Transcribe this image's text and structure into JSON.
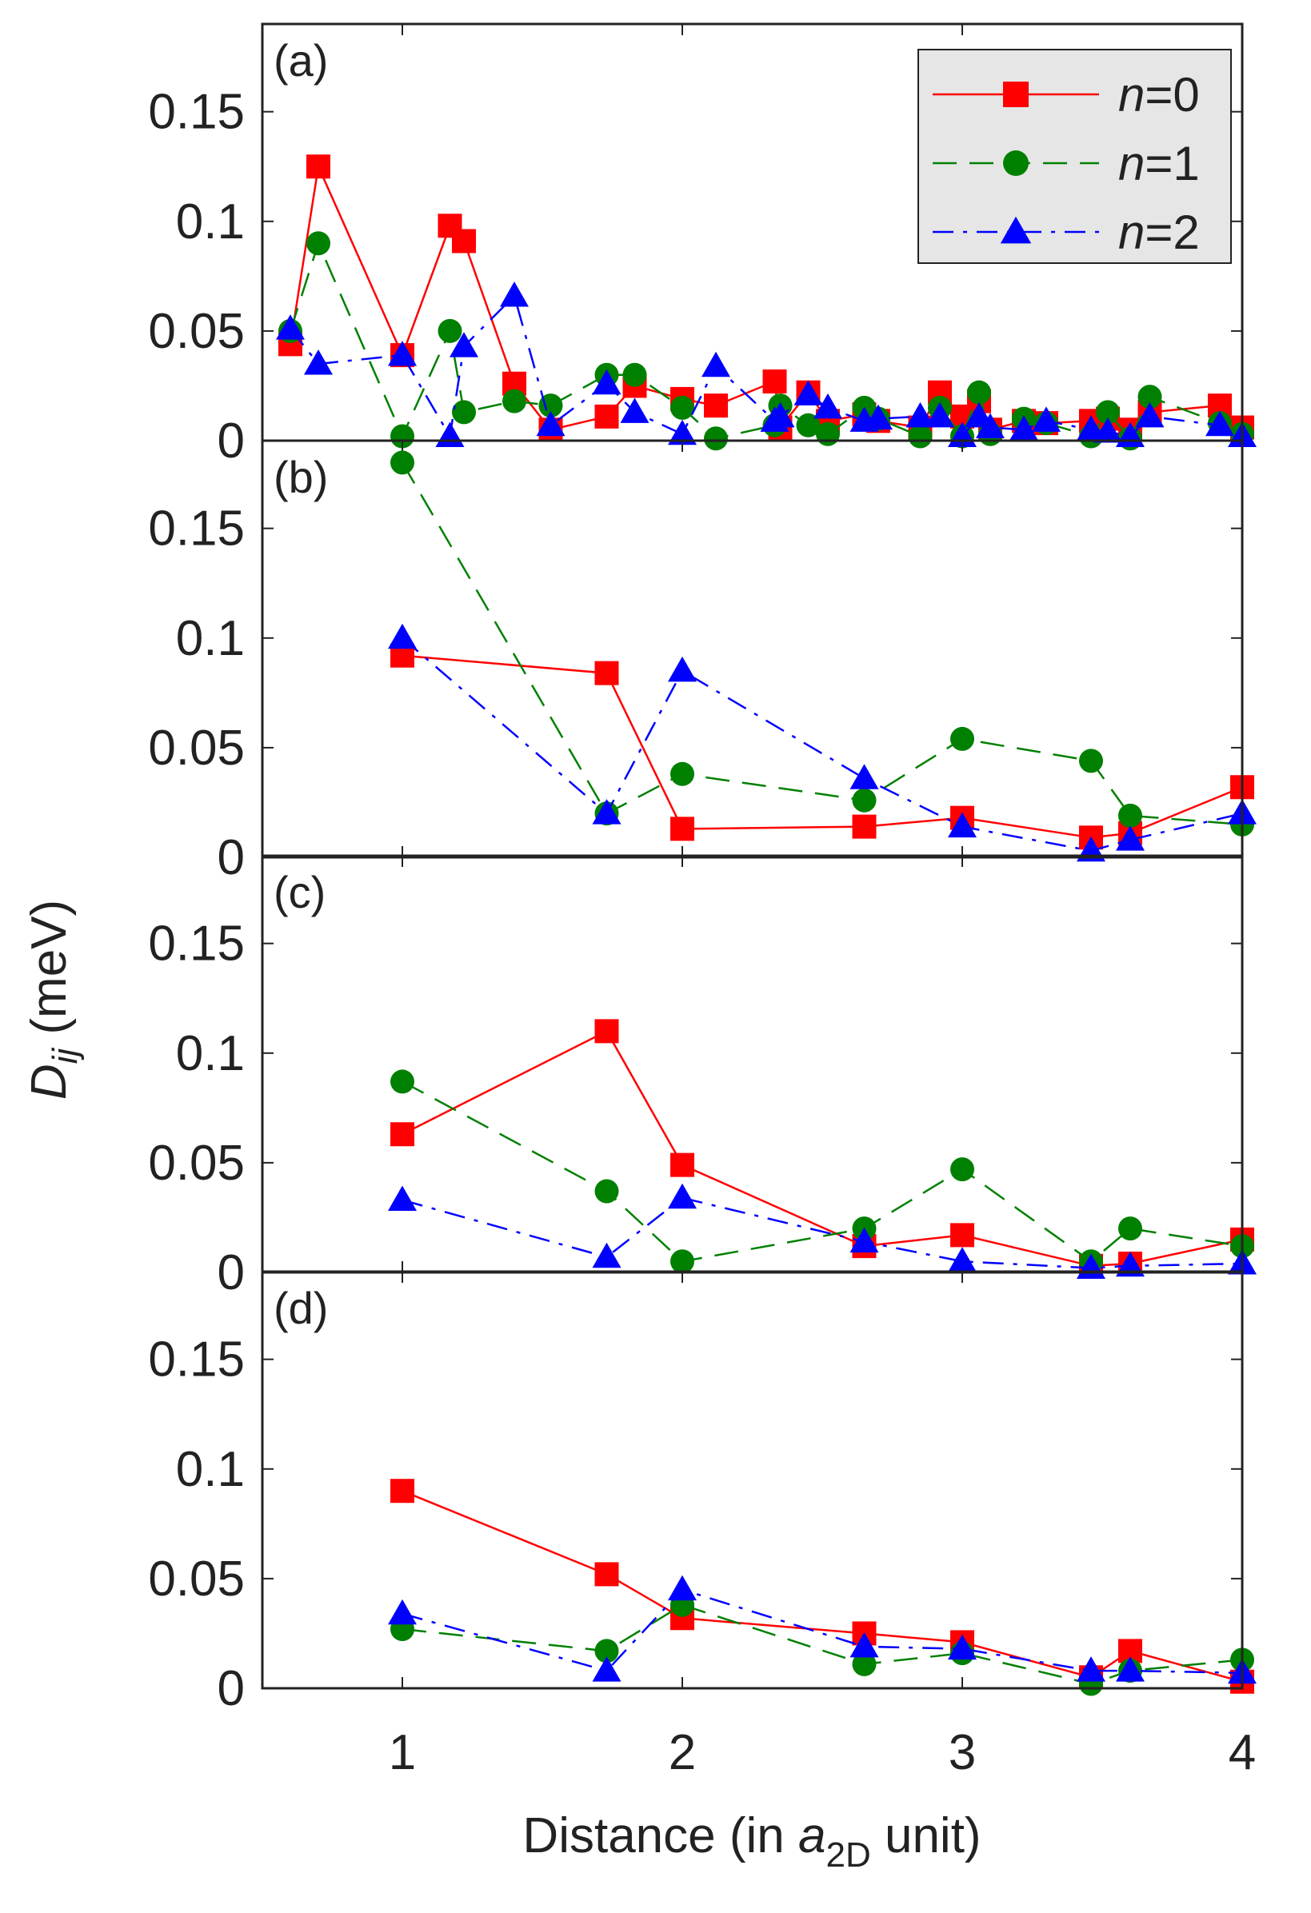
{
  "chart_data": {
    "type": "line",
    "xlabel_parts": {
      "pre": "Distance (in ",
      "var": "a",
      "sub": "2D",
      "post": " unit)"
    },
    "ylabel_parts": {
      "var": "D",
      "sub": "ij",
      "post": " (meV)"
    },
    "xlim": [
      0.5,
      4.0
    ],
    "ylim": [
      0,
      0.19
    ],
    "x_ticks": [
      1,
      2,
      3,
      4
    ],
    "x_tick_labels": [
      "1",
      "2",
      "3",
      "4"
    ],
    "y_ticks": [
      0,
      0.05,
      0.1,
      0.15
    ],
    "y_tick_labels": [
      "0",
      "0.05",
      "0.1",
      "0.15"
    ],
    "legend": {
      "location": "top-right",
      "entries": [
        {
          "var": "n",
          "rest": "=0"
        },
        {
          "var": "n",
          "rest": "=1"
        },
        {
          "var": "n",
          "rest": "=2"
        }
      ]
    },
    "series_styles": [
      {
        "name": "n=0",
        "color": "#ff0000",
        "marker": "square",
        "dash": "solid"
      },
      {
        "name": "n=1",
        "color": "#008000",
        "marker": "circle",
        "dash": "dashed"
      },
      {
        "name": "n=2",
        "color": "#0000ff",
        "marker": "triangle",
        "dash": "dashdot"
      }
    ],
    "panels": [
      {
        "label": "(a)",
        "series": [
          {
            "name": "n=0",
            "x": [
              0.6,
              0.7,
              1.0,
              1.17,
              1.22,
              1.4,
              1.53,
              1.73,
              1.83,
              2.0,
              2.12,
              2.33,
              2.35,
              2.45,
              2.52,
              2.65,
              2.7,
              2.85,
              2.92,
              3.0,
              3.06,
              3.1,
              3.22,
              3.3,
              3.46,
              3.52,
              3.6,
              3.67,
              3.92,
              4.0
            ],
            "values": [
              0.044,
              0.125,
              0.039,
              0.098,
              0.091,
              0.026,
              0.005,
              0.011,
              0.025,
              0.019,
              0.016,
              0.027,
              0.006,
              0.022,
              0.009,
              0.012,
              0.009,
              0.006,
              0.022,
              0.011,
              0.018,
              0.005,
              0.009,
              0.008,
              0.009,
              0.01,
              0.005,
              0.013,
              0.016,
              0.006
            ]
          },
          {
            "name": "n=1",
            "x": [
              0.6,
              0.7,
              1.0,
              1.17,
              1.22,
              1.4,
              1.53,
              1.73,
              1.83,
              2.0,
              2.12,
              2.33,
              2.35,
              2.45,
              2.52,
              2.65,
              2.7,
              2.85,
              2.92,
              3.0,
              3.06,
              3.1,
              3.22,
              3.3,
              3.46,
              3.52,
              3.6,
              3.67,
              3.92,
              4.0
            ],
            "values": [
              0.05,
              0.09,
              0.002,
              0.05,
              0.013,
              0.018,
              0.016,
              0.03,
              0.03,
              0.015,
              0.001,
              0.007,
              0.016,
              0.007,
              0.003,
              0.015,
              0.01,
              0.002,
              0.015,
              0.002,
              0.022,
              0.003,
              0.01,
              0.008,
              0.002,
              0.013,
              0.001,
              0.02,
              0.008,
              0.003
            ]
          },
          {
            "name": "n=2",
            "x": [
              0.6,
              0.7,
              1.0,
              1.17,
              1.22,
              1.4,
              1.53,
              1.73,
              1.83,
              2.0,
              2.12,
              2.33,
              2.35,
              2.45,
              2.52,
              2.65,
              2.7,
              2.85,
              2.92,
              3.0,
              3.06,
              3.1,
              3.22,
              3.3,
              3.46,
              3.52,
              3.6,
              3.67,
              3.92,
              4.0
            ],
            "values": [
              0.051,
              0.035,
              0.039,
              0.002,
              0.043,
              0.066,
              0.007,
              0.026,
              0.013,
              0.003,
              0.034,
              0.009,
              0.011,
              0.021,
              0.015,
              0.009,
              0.01,
              0.011,
              0.011,
              0.002,
              0.011,
              0.006,
              0.005,
              0.009,
              0.005,
              0.004,
              0.002,
              0.011,
              0.007,
              0.002
            ]
          }
        ]
      },
      {
        "label": "(b)",
        "series": [
          {
            "name": "n=0",
            "x": [
              1.0,
              1.73,
              2.0,
              2.65,
              3.0,
              3.46,
              3.6,
              4.0
            ],
            "values": [
              0.092,
              0.084,
              0.013,
              0.014,
              0.018,
              0.009,
              0.011,
              0.032
            ]
          },
          {
            "name": "n=1",
            "x": [
              1.0,
              1.73,
              2.0,
              2.65,
              3.0,
              3.46,
              3.6,
              4.0
            ],
            "values": [
              0.18,
              0.02,
              0.038,
              0.026,
              0.054,
              0.044,
              0.019,
              0.015
            ]
          },
          {
            "name": "n=2",
            "x": [
              1.0,
              1.73,
              2.0,
              2.65,
              3.0,
              3.46,
              3.6,
              4.0
            ],
            "values": [
              0.1,
              0.02,
              0.085,
              0.036,
              0.014,
              0.003,
              0.008,
              0.02
            ]
          }
        ]
      },
      {
        "label": "(c)",
        "series": [
          {
            "name": "n=0",
            "x": [
              1.0,
              1.73,
              2.0,
              2.65,
              3.0,
              3.46,
              3.6,
              4.0
            ],
            "values": [
              0.063,
              0.11,
              0.049,
              0.012,
              0.017,
              0.003,
              0.004,
              0.015
            ]
          },
          {
            "name": "n=1",
            "x": [
              1.0,
              1.73,
              2.0,
              2.65,
              3.0,
              3.46,
              3.6,
              4.0
            ],
            "values": [
              0.087,
              0.037,
              0.005,
              0.02,
              0.047,
              0.005,
              0.02,
              0.012
            ]
          },
          {
            "name": "n=2",
            "x": [
              1.0,
              1.73,
              2.0,
              2.65,
              3.0,
              3.46,
              3.6,
              4.0
            ],
            "values": [
              0.033,
              0.007,
              0.034,
              0.014,
              0.005,
              0.002,
              0.003,
              0.004
            ]
          }
        ]
      },
      {
        "label": "(d)",
        "series": [
          {
            "name": "n=0",
            "x": [
              1.0,
              1.73,
              2.0,
              2.65,
              3.0,
              3.46,
              3.6,
              4.0
            ],
            "values": [
              0.09,
              0.052,
              0.032,
              0.025,
              0.021,
              0.005,
              0.017,
              0.003
            ]
          },
          {
            "name": "n=1",
            "x": [
              1.0,
              1.73,
              2.0,
              2.65,
              3.0,
              3.46,
              3.6,
              4.0
            ],
            "values": [
              0.027,
              0.017,
              0.038,
              0.011,
              0.016,
              0.002,
              0.008,
              0.013
            ]
          },
          {
            "name": "n=2",
            "x": [
              1.0,
              1.73,
              2.0,
              2.65,
              3.0,
              3.46,
              3.6,
              4.0
            ],
            "values": [
              0.034,
              0.008,
              0.045,
              0.019,
              0.018,
              0.008,
              0.008,
              0.007
            ]
          }
        ]
      }
    ]
  }
}
